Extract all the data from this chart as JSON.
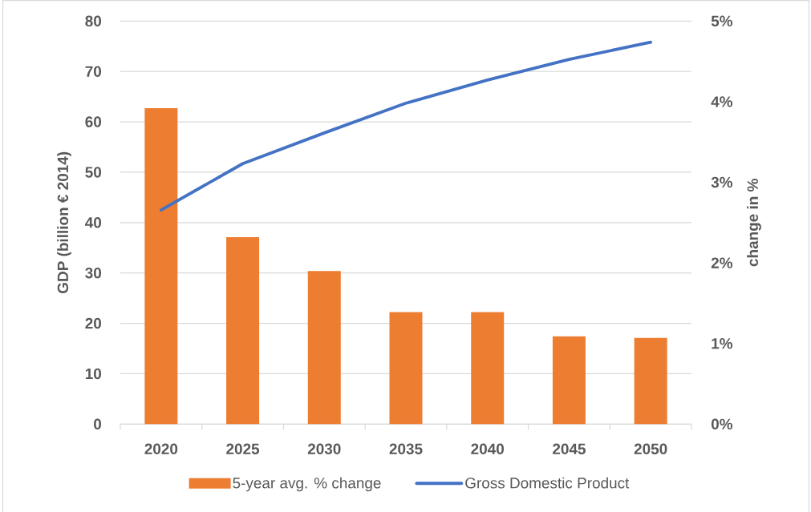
{
  "chart_data": {
    "type": "bar",
    "categories": [
      "2020",
      "2025",
      "2030",
      "2035",
      "2040",
      "2045",
      "2050"
    ],
    "ylabel": "GDP (billion €  2014)",
    "y2label": "change in %",
    "ylim": [
      0,
      80
    ],
    "yticks": [
      0,
      10,
      20,
      30,
      40,
      50,
      60,
      70,
      80
    ],
    "y2lim": [
      0,
      5
    ],
    "y2ticks": [
      {
        "value": 0,
        "label": "0%"
      },
      {
        "value": 1,
        "label": "1%"
      },
      {
        "value": 2,
        "label": "2%"
      },
      {
        "value": 3,
        "label": "3%"
      },
      {
        "value": 4,
        "label": "4%"
      },
      {
        "value": 5,
        "label": "5%"
      }
    ],
    "grid": "y",
    "legend": "bottom",
    "series": [
      {
        "name": "5-year avg. % change",
        "axis": "y2",
        "color": "#ed7d31",
        "values": [
          3.92,
          2.32,
          1.9,
          1.39,
          1.39,
          1.09,
          1.07
        ]
      },
      {
        "name": "Gross Domestic Product",
        "type": "line",
        "color": "#4472c4",
        "values": [
          42.5,
          51.7,
          57.8,
          63.7,
          68.3,
          72.4,
          75.8
        ]
      }
    ]
  }
}
